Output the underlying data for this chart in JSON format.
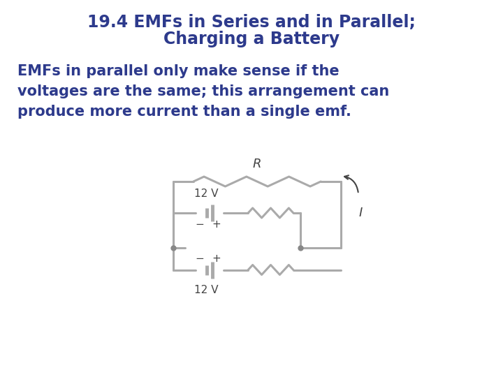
{
  "title_line1": "19.4 EMFs in Series and in Parallel;",
  "title_line2": "Charging a Battery",
  "body_text": "EMFs in parallel only make sense if the\nvoltages are the same; this arrangement can\nproduce more current than a single emf.",
  "title_color": "#2d3a8c",
  "body_color": "#2d3a8c",
  "circuit_color": "#aaaaaa",
  "bg_color": "#ffffff",
  "title_fontsize": 17,
  "body_fontsize": 15,
  "circuit_label_color": "#444444",
  "dot_color": "#888888"
}
